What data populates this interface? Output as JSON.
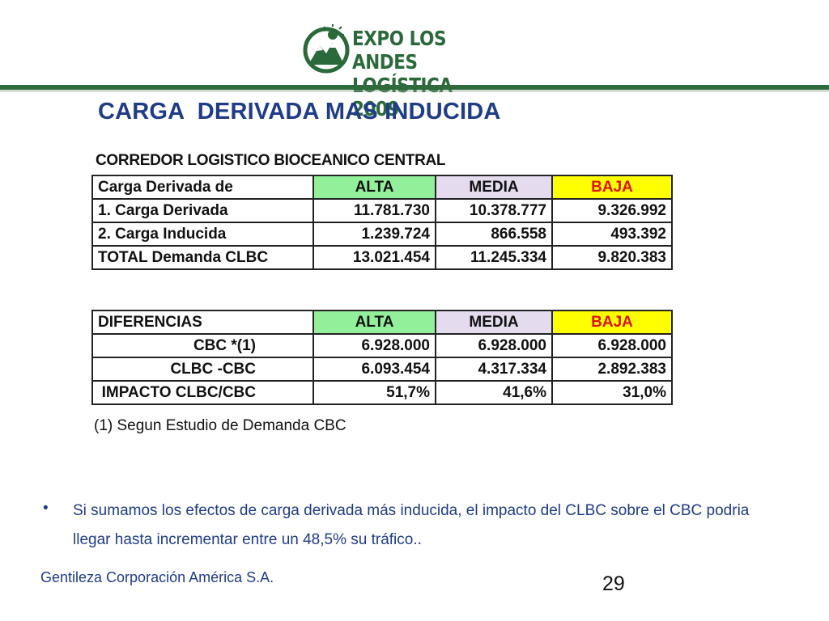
{
  "logo": {
    "line1": "EXPO LOS ANDES",
    "line2": "LOGÍSTICA 2009",
    "icon": "mountain-sun-emblem-icon",
    "color": "#2a6a3a"
  },
  "title": "CARGA  DERIVADA MAS INDUCIDA",
  "subtitle": "CORREDOR LOGISTICO BIOCEANICO CENTRAL",
  "table1": {
    "headers": [
      "Carga Derivada de",
      "ALTA",
      "MEDIA",
      "BAJA"
    ],
    "rows": [
      [
        "1. Carga Derivada",
        "11.781.730",
        "10.378.777",
        "9.326.992"
      ],
      [
        "2. Carga Inducida",
        "1.239.724",
        "866.558",
        "493.392"
      ],
      [
        "TOTAL Demanda CLBC",
        "13.021.454",
        "11.245.334",
        "9.820.383"
      ]
    ]
  },
  "table2": {
    "headers": [
      "DIFERENCIAS",
      "ALTA",
      "MEDIA",
      "BAJA"
    ],
    "rows": [
      [
        "CBC *(1)",
        "6.928.000",
        "6.928.000",
        "6.928.000"
      ],
      [
        "CLBC -CBC",
        "6.093.454",
        "4.317.334",
        "2.892.383"
      ],
      [
        "IMPACTO CLBC/CBC",
        "51,7%",
        "41,6%",
        "31,0%"
      ]
    ]
  },
  "footnote": "(1) Segun Estudio de Demanda CBC",
  "bullet": {
    "marker": "•",
    "text": "Si sumamos los efectos de carga derivada más inducida, el impacto del CLBC sobre el CBC podria llegar hasta incrementar entre un 48,5% su tráfico.."
  },
  "credit": "Gentileza Corporación América S.A.",
  "page_number": "29",
  "colors": {
    "title_blue": "#1f3c88",
    "header_green": "#92f09a",
    "header_lavender": "#e4dcee",
    "header_yellow": "#ffff00",
    "baja_red": "#dd1111"
  }
}
